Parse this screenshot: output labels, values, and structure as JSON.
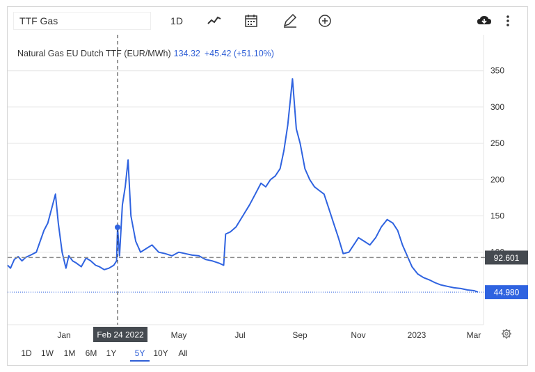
{
  "search": {
    "value": "TTF Gas"
  },
  "toolbar": {
    "interval_label": "1D"
  },
  "header": {
    "name": "Natural Gas EU Dutch TTF (EUR/MWh)",
    "value": "134.32",
    "change": "+45.42 (+51.10%)"
  },
  "ranges": [
    "1D",
    "1W",
    "1M",
    "6M",
    "1Y",
    "5Y",
    "10Y",
    "All"
  ],
  "active_range": "5Y",
  "crosshair": {
    "label": "Feb 24 2022",
    "x": "2022-02-24",
    "y": 134.32
  },
  "reference_line": {
    "label": "92.601",
    "value": 92.601
  },
  "last_price": {
    "label": "44.980",
    "value": 44.98
  },
  "chart_data": {
    "type": "line",
    "x_axis": {
      "ticks": [
        "Jan",
        "Feb 24 2022",
        "May",
        "Jul",
        "Sep",
        "Nov",
        "2023",
        "Mar"
      ]
    },
    "y_axis": {
      "ticks": [
        "100",
        "150",
        "200",
        "250",
        "300",
        "350"
      ],
      "ylim": [
        40,
        390
      ]
    },
    "grid": true,
    "series": [
      {
        "color": "#2f63e0",
        "points": [
          [
            "2021-11-01",
            82
          ],
          [
            "2021-11-04",
            78
          ],
          [
            "2021-11-08",
            90
          ],
          [
            "2021-11-12",
            94
          ],
          [
            "2021-11-16",
            88
          ],
          [
            "2021-11-20",
            93
          ],
          [
            "2021-11-25",
            96
          ],
          [
            "2021-12-01",
            100
          ],
          [
            "2021-12-05",
            115
          ],
          [
            "2021-12-09",
            130
          ],
          [
            "2021-12-13",
            140
          ],
          [
            "2021-12-17",
            160
          ],
          [
            "2021-12-21",
            180
          ],
          [
            "2021-12-24",
            140
          ],
          [
            "2021-12-28",
            100
          ],
          [
            "2022-01-01",
            78
          ],
          [
            "2022-01-04",
            95
          ],
          [
            "2022-01-08",
            88
          ],
          [
            "2022-01-12",
            85
          ],
          [
            "2022-01-17",
            80
          ],
          [
            "2022-01-22",
            92
          ],
          [
            "2022-01-27",
            88
          ],
          [
            "2022-02-01",
            82
          ],
          [
            "2022-02-05",
            80
          ],
          [
            "2022-02-10",
            76
          ],
          [
            "2022-02-15",
            78
          ],
          [
            "2022-02-20",
            82
          ],
          [
            "2022-02-23",
            88
          ],
          [
            "2022-02-24",
            134.32
          ],
          [
            "2022-02-26",
            95
          ],
          [
            "2022-03-01",
            165
          ],
          [
            "2022-03-04",
            190
          ],
          [
            "2022-03-07",
            227
          ],
          [
            "2022-03-10",
            150
          ],
          [
            "2022-03-15",
            115
          ],
          [
            "2022-03-20",
            100
          ],
          [
            "2022-03-26",
            105
          ],
          [
            "2022-04-01",
            110
          ],
          [
            "2022-04-08",
            100
          ],
          [
            "2022-04-15",
            98
          ],
          [
            "2022-04-22",
            95
          ],
          [
            "2022-04-29",
            100
          ],
          [
            "2022-05-06",
            98
          ],
          [
            "2022-05-13",
            96
          ],
          [
            "2022-05-20",
            95
          ],
          [
            "2022-05-27",
            90
          ],
          [
            "2022-06-03",
            88
          ],
          [
            "2022-06-10",
            85
          ],
          [
            "2022-06-15",
            82
          ],
          [
            "2022-06-17",
            125
          ],
          [
            "2022-06-22",
            128
          ],
          [
            "2022-06-28",
            135
          ],
          [
            "2022-07-05",
            150
          ],
          [
            "2022-07-12",
            165
          ],
          [
            "2022-07-18",
            180
          ],
          [
            "2022-07-24",
            195
          ],
          [
            "2022-07-29",
            190
          ],
          [
            "2022-08-03",
            200
          ],
          [
            "2022-08-08",
            205
          ],
          [
            "2022-08-13",
            215
          ],
          [
            "2022-08-17",
            240
          ],
          [
            "2022-08-21",
            275
          ],
          [
            "2022-08-26",
            339
          ],
          [
            "2022-08-30",
            270
          ],
          [
            "2022-09-03",
            250
          ],
          [
            "2022-09-08",
            215
          ],
          [
            "2022-09-13",
            200
          ],
          [
            "2022-09-18",
            190
          ],
          [
            "2022-09-23",
            185
          ],
          [
            "2022-09-28",
            180
          ],
          [
            "2022-10-03",
            160
          ],
          [
            "2022-10-08",
            140
          ],
          [
            "2022-10-13",
            120
          ],
          [
            "2022-10-18",
            98
          ],
          [
            "2022-10-24",
            100
          ],
          [
            "2022-10-29",
            110
          ],
          [
            "2022-11-03",
            120
          ],
          [
            "2022-11-09",
            115
          ],
          [
            "2022-11-15",
            110
          ],
          [
            "2022-11-21",
            120
          ],
          [
            "2022-11-27",
            135
          ],
          [
            "2022-12-03",
            145
          ],
          [
            "2022-12-09",
            140
          ],
          [
            "2022-12-14",
            130
          ],
          [
            "2022-12-19",
            110
          ],
          [
            "2022-12-24",
            95
          ],
          [
            "2022-12-29",
            80
          ],
          [
            "2023-01-04",
            70
          ],
          [
            "2023-01-10",
            65
          ],
          [
            "2023-01-16",
            62
          ],
          [
            "2023-01-22",
            58
          ],
          [
            "2023-01-28",
            55
          ],
          [
            "2023-02-04",
            53
          ],
          [
            "2023-02-11",
            51
          ],
          [
            "2023-02-18",
            50
          ],
          [
            "2023-02-25",
            48
          ],
          [
            "2023-03-04",
            47
          ],
          [
            "2023-03-08",
            44.98
          ]
        ]
      }
    ]
  }
}
